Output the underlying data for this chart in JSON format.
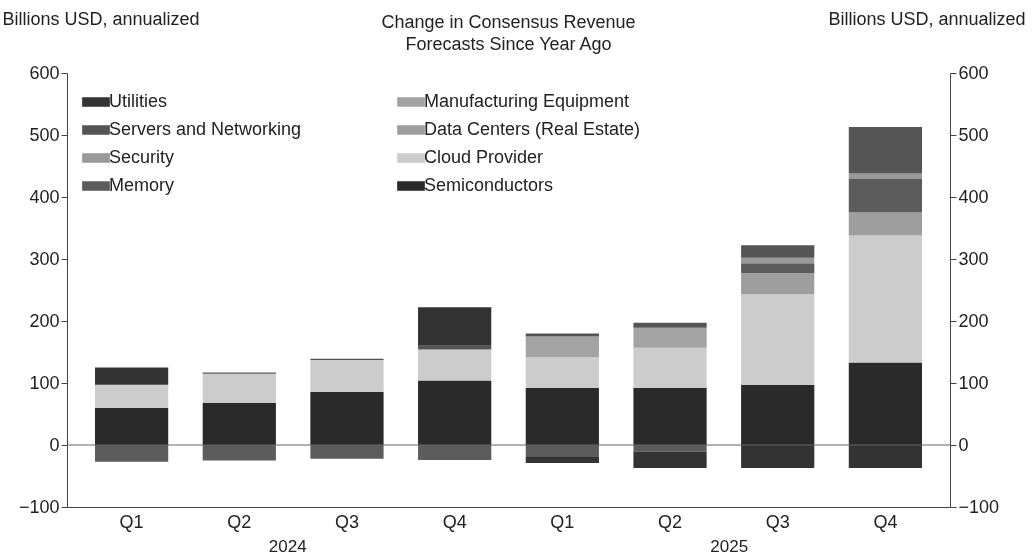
{
  "chart_data": {
    "type": "bar",
    "stacked": true,
    "title": "Change in Consensus Revenue\nForecasts Since Year Ago",
    "ylabel": "Billions USD, annualized",
    "y2label": "Billions USD, annualized",
    "categories": [
      "Q1",
      "Q2",
      "Q3",
      "Q4",
      "Q1",
      "Q2",
      "Q3",
      "Q4"
    ],
    "annotations": [
      "2024",
      "2025"
    ],
    "series": [
      {
        "name": "Semiconductors",
        "color": "#2a2a2a",
        "values": [
          60,
          68,
          86,
          104,
          92,
          92,
          97,
          133
        ]
      },
      {
        "name": "Cloud Provider",
        "color": "#cccccc",
        "values": [
          37,
          47,
          51,
          50,
          50,
          65,
          146,
          205
        ]
      },
      {
        "name": "Data Centers (Real Estate)",
        "color": "#9e9e9e",
        "values": [
          null,
          null,
          null,
          null,
          null,
          null,
          34,
          37
        ]
      },
      {
        "name": "Manufacturing Equipment",
        "color": "#a3a3a3",
        "values": [
          null,
          null,
          null,
          null,
          33,
          32,
          null,
          null
        ]
      },
      {
        "name": "Memory",
        "color": "#5c5c5c",
        "values": [
          -27,
          -25,
          -22,
          -24,
          -18,
          -11,
          16,
          54
        ]
      },
      {
        "name": "Security",
        "color": "#999999",
        "values": [
          null,
          null,
          null,
          null,
          null,
          null,
          9,
          9
        ]
      },
      {
        "name": "Servers and Networking",
        "color": "#555555",
        "values": [
          null,
          2,
          2,
          6,
          5,
          8,
          20,
          75
        ]
      },
      {
        "name": "Utilities",
        "color": "#333333",
        "values": [
          28,
          null,
          null,
          62,
          -11,
          -26,
          -37,
          -37
        ]
      }
    ],
    "ylim": [
      -100,
      600
    ],
    "yticks": [
      -100,
      0,
      100,
      200,
      300,
      400,
      500,
      600
    ],
    "y2lim": [
      -100,
      600
    ],
    "y2ticks": [
      -100,
      0,
      100,
      200,
      300,
      400,
      500,
      600
    ],
    "ref_lines": [
      {
        "axis": "y",
        "value": 0
      }
    ],
    "legend": "top left",
    "grid": false
  }
}
